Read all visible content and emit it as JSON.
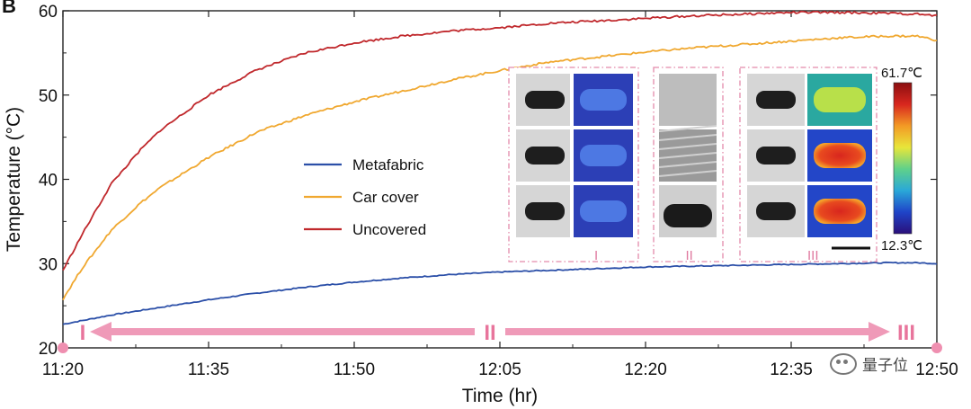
{
  "figure_letter": "B",
  "chart_data": {
    "type": "line",
    "title": "",
    "xlabel": "Time (hr)",
    "ylabel": "Temperature (°C)",
    "x_ticks": [
      "11:20",
      "11:35",
      "11:50",
      "12:05",
      "12:20",
      "12:35",
      "12:50"
    ],
    "x_range_minutes": [
      0,
      90
    ],
    "ylim": [
      20,
      60
    ],
    "y_ticks": [
      20,
      30,
      40,
      50,
      60
    ],
    "grid": false,
    "legend_placement": "center-left",
    "series": [
      {
        "name": "Metafabric",
        "color": "#2b4fa8",
        "x": [
          0,
          5,
          10,
          15,
          20,
          25,
          30,
          35,
          40,
          45,
          50,
          55,
          60,
          65,
          70,
          75,
          80,
          85,
          88,
          90
        ],
        "y": [
          22.8,
          23.9,
          24.8,
          25.7,
          26.5,
          27.2,
          27.8,
          28.3,
          28.7,
          29.0,
          29.2,
          29.4,
          29.6,
          29.7,
          29.8,
          29.9,
          30.0,
          30.1,
          30.1,
          30.0
        ]
      },
      {
        "name": "Car cover",
        "color": "#f0a830",
        "x": [
          0,
          2,
          5,
          8,
          10,
          15,
          20,
          25,
          30,
          35,
          40,
          45,
          50,
          55,
          60,
          65,
          70,
          75,
          80,
          85,
          88,
          90
        ],
        "y": [
          25.8,
          29.5,
          34.0,
          37.2,
          39.0,
          42.6,
          45.6,
          47.6,
          49.2,
          50.5,
          51.8,
          52.9,
          53.9,
          54.5,
          55.1,
          55.6,
          56.0,
          56.4,
          56.8,
          57.0,
          57.0,
          56.5
        ]
      },
      {
        "name": "Uncovered",
        "color": "#c0282c",
        "x": [
          0,
          2,
          5,
          8,
          10,
          15,
          20,
          25,
          30,
          35,
          40,
          45,
          50,
          55,
          60,
          65,
          70,
          75,
          80,
          85,
          88,
          90
        ],
        "y": [
          29.2,
          33.5,
          39.5,
          43.5,
          45.8,
          50.0,
          53.0,
          55.0,
          56.2,
          57.0,
          57.6,
          58.0,
          58.5,
          58.8,
          59.1,
          59.4,
          59.6,
          59.8,
          59.8,
          59.7,
          59.6,
          59.4
        ]
      }
    ],
    "phase_markers": [
      "I",
      "II",
      "III"
    ],
    "inset": {
      "panels": [
        "I",
        "II",
        "III"
      ],
      "colorbar_max": "61.7℃",
      "colorbar_min": "12.3℃",
      "colorbar_colors": [
        "#2a0f7a",
        "#1f44c8",
        "#2aa8d8",
        "#5fd18a",
        "#e8e63a",
        "#f39a25",
        "#d8261e",
        "#8a0f10"
      ]
    }
  },
  "watermark": "量子位"
}
